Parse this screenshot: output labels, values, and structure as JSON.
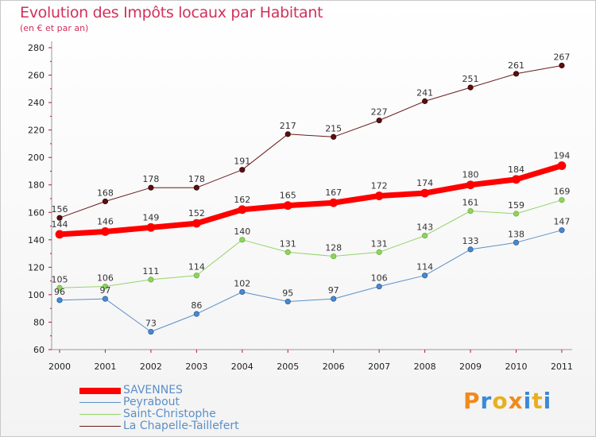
{
  "header": {
    "title": "Evolution des Impôts locaux par Habitant",
    "subtitle": "(en € et par an)"
  },
  "logo": {
    "text": "Proxiti",
    "letter_colors": [
      "#f08a1c",
      "#3a8ad6",
      "#e8b020",
      "#f08a1c",
      "#3a8ad6",
      "#e8b020",
      "#3a8ad6"
    ]
  },
  "chart_data": {
    "type": "line",
    "categories": [
      "2000",
      "2001",
      "2002",
      "2003",
      "2004",
      "2005",
      "2006",
      "2007",
      "2008",
      "2009",
      "2010",
      "2011"
    ],
    "ylim": [
      60,
      280
    ],
    "yticks": [
      60,
      80,
      100,
      120,
      140,
      160,
      180,
      200,
      220,
      240,
      260,
      280
    ],
    "grid": false,
    "legend_position": "bottom-left",
    "series": [
      {
        "name": "SAVENNES",
        "color": "#ff0000",
        "values": [
          144,
          146,
          149,
          152,
          162,
          165,
          167,
          172,
          174,
          180,
          184,
          194
        ]
      },
      {
        "name": "Peyrabout",
        "color": "#5b8fc7",
        "values": [
          96,
          97,
          73,
          86,
          102,
          95,
          97,
          106,
          114,
          133,
          138,
          147
        ]
      },
      {
        "name": "Saint-Christophe",
        "color": "#96d36a",
        "values": [
          105,
          106,
          111,
          114,
          140,
          131,
          128,
          131,
          143,
          161,
          159,
          169
        ]
      },
      {
        "name": "La Chapelle-Taillefert",
        "color": "#6b1c1c",
        "values": [
          156,
          168,
          178,
          178,
          191,
          217,
          215,
          227,
          241,
          251,
          261,
          267
        ]
      }
    ]
  }
}
